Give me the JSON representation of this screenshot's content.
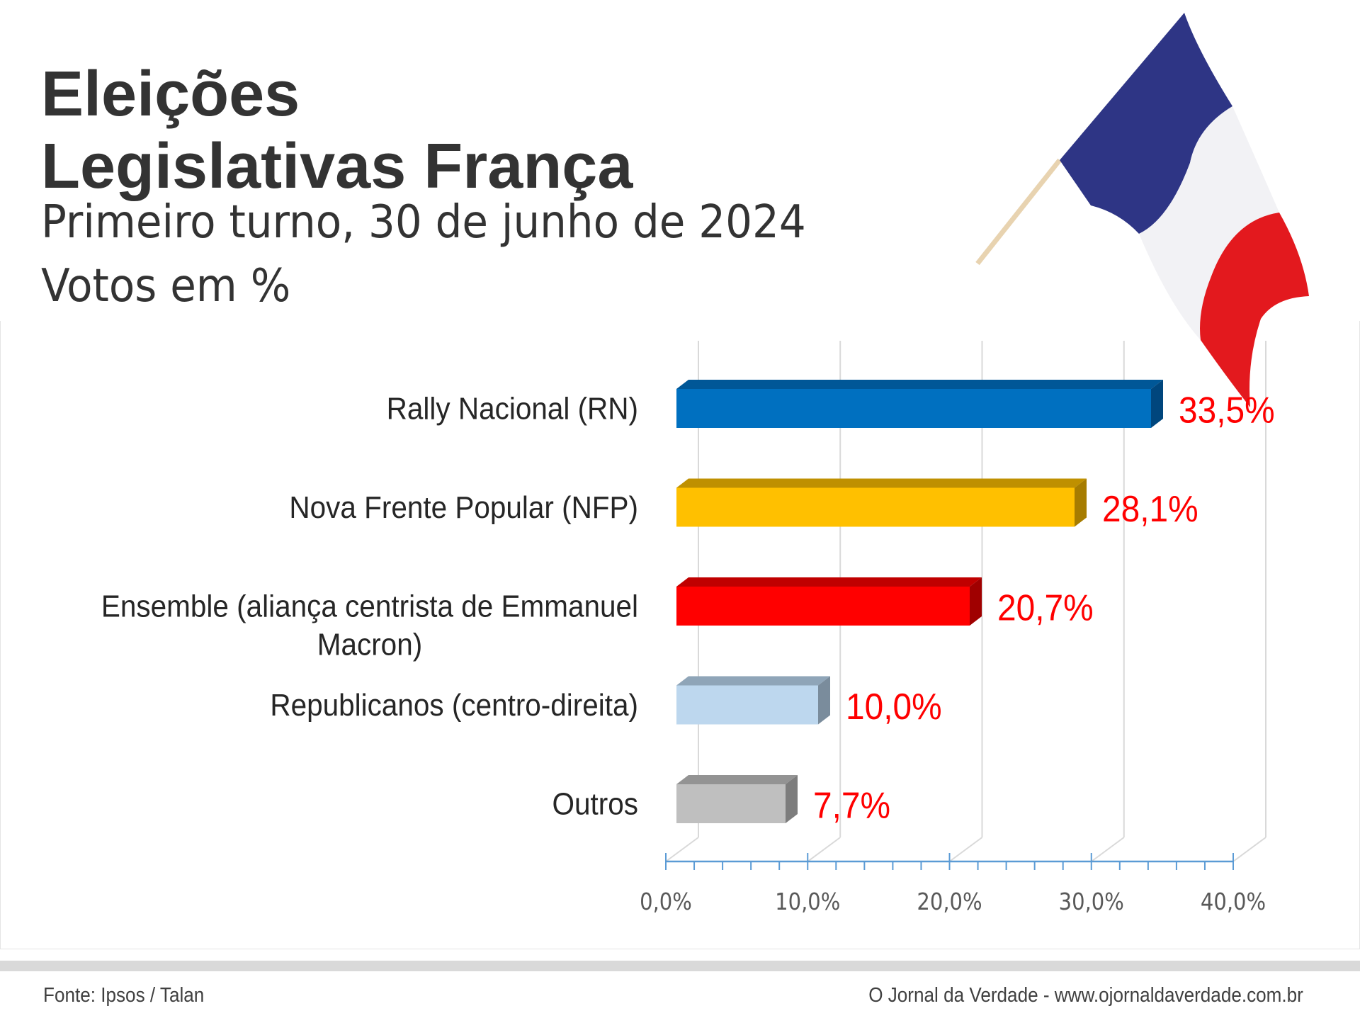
{
  "header": {
    "title_line1": "Eleições",
    "title_line2": "Legislativas França",
    "subtitle": "Primeiro turno, 30 de junho de 2024",
    "units": "Votos em %"
  },
  "illustration": {
    "icon": "france-flag-icon",
    "colors": {
      "blue": "#2e3585",
      "white": "#f2f2f5",
      "red": "#e3191e",
      "pole": "#e8d3b0"
    }
  },
  "chart_data": {
    "type": "bar",
    "orientation": "horizontal",
    "style": "3d",
    "title": "Eleições Legislativas França",
    "subtitle": "Primeiro turno, 30 de junho de 2024",
    "ylabel": "Votos em %",
    "xlabel": "",
    "categories": [
      "Rally Nacional (RN)",
      "Nova Frente Popular (NFP)",
      "Ensemble (aliança centrista de Emmanuel Macron)",
      "Republicanos (centro-direita)",
      "Outros"
    ],
    "category_label_lines": [
      [
        "Rally Nacional (RN)"
      ],
      [
        "Nova Frente Popular (NFP)"
      ],
      [
        "Ensemble (aliança centrista de Emmanuel",
        "Macron)"
      ],
      [
        "Republicanos (centro-direita)"
      ],
      [
        "Outros"
      ]
    ],
    "values": [
      33.5,
      28.1,
      20.7,
      10.0,
      7.7
    ],
    "value_labels": [
      "33,5%",
      "28,1%",
      "20,7%",
      "10,0%",
      "7,7%"
    ],
    "bar_colors": [
      {
        "front": "#0070c0",
        "top": "#005797",
        "side": "#00467d"
      },
      {
        "front": "#ffc000",
        "top": "#bf9000",
        "side": "#a67c00"
      },
      {
        "front": "#ff0000",
        "top": "#c00000",
        "side": "#a00000"
      },
      {
        "front": "#bdd7ee",
        "top": "#8fa5b8",
        "side": "#7a8c9c"
      },
      {
        "front": "#bfbfbf",
        "top": "#939393",
        "side": "#7d7d7d"
      }
    ],
    "value_label_color": "#ff0000",
    "xlim": [
      0,
      40
    ],
    "x_ticks": [
      0,
      10,
      20,
      30,
      40
    ],
    "x_tick_labels": [
      "0,0%",
      "10,0%",
      "20,0%",
      "30,0%",
      "40,0%"
    ],
    "minor_tick_step": 2,
    "grid": true,
    "axis_color": "#5b9bd5",
    "grid_color": "#d9d9d9",
    "legend": "none"
  },
  "footer": {
    "source": "Fonte: Ipsos / Talan",
    "brand": "O Jornal da Verdade - www.ojornaldaverdade.com.br"
  }
}
